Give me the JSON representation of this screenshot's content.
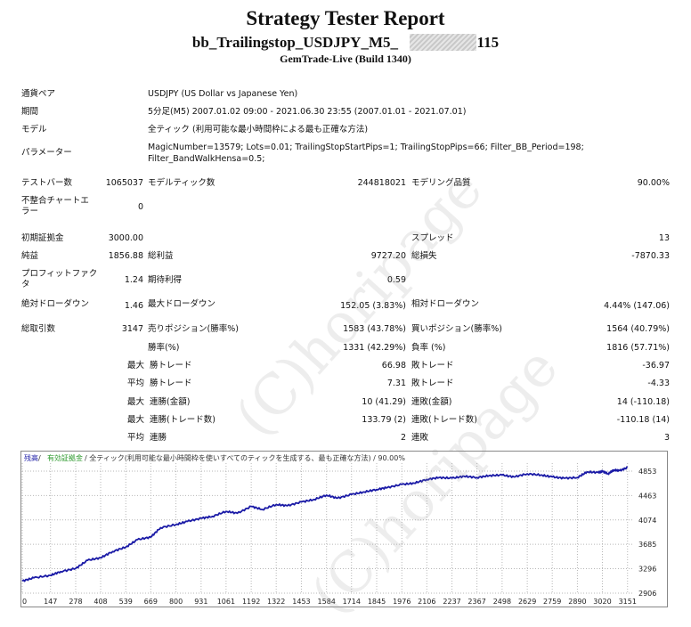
{
  "header": {
    "title": "Strategy Tester Report",
    "subtitle_left": "bb_Trailingstop_USDJPY_M5_",
    "subtitle_right": "2115",
    "server": "GemTrade-Live (Build 1340)"
  },
  "info": {
    "symbol_label": "通貨ペア",
    "symbol_value": "USDJPY (US Dollar vs Japanese Yen)",
    "period_label": "期間",
    "period_value": "5分足(M5) 2007.01.02 09:00 - 2021.06.30 23:55 (2007.01.01 - 2021.07.01)",
    "model_label": "モデル",
    "model_value": "全ティック (利用可能な最小時間枠による最も正確な方法)",
    "params_label": "パラメーター",
    "params_value_1": "MagicNumber=13579; Lots=0.01; TrailingStopStartPips=1; TrailingStopPips=66; Filter_BB_Period=198;",
    "params_value_2": "Filter_BandWalkHensa=0.5;"
  },
  "stats": {
    "bars_label": "テストバー数",
    "bars_value": "1065037",
    "ticks_label": "モデルティック数",
    "ticks_value": "244818021",
    "quality_label": "モデリング品質",
    "quality_value": "90.00%",
    "mismatch_label": "不整合チャートエラー",
    "mismatch_value": "0",
    "deposit_label": "初期証拠金",
    "deposit_value": "3000.00",
    "spread_label": "スプレッド",
    "spread_value": "13",
    "net_label": "純益",
    "net_value": "1856.88",
    "gross_profit_label": "総利益",
    "gross_profit_value": "9727.20",
    "gross_loss_label": "総損失",
    "gross_loss_value": "-7870.33",
    "pf_label": "プロフィットファクタ",
    "pf_value": "1.24",
    "expected_label": "期待利得",
    "expected_value": "0.59",
    "abs_dd_label": "絶対ドローダウン",
    "abs_dd_value": "1.46",
    "max_dd_label": "最大ドローダウン",
    "max_dd_value": "152.05 (3.83%)",
    "rel_dd_label": "相対ドローダウン",
    "rel_dd_value": "4.44% (147.06)",
    "trades_label": "総取引数",
    "trades_value": "3147",
    "short_label": "売りポジション(勝率%)",
    "short_value": "1583 (43.78%)",
    "long_label": "買いポジション(勝率%)",
    "long_value": "1564 (40.79%)",
    "win_label": "勝率(%)",
    "win_value": "1331 (42.29%)",
    "loss_label": "負率 (%)",
    "loss_value": "1816 (57.71%)",
    "max_word": "最大",
    "avg_word": "平均",
    "max_win_label": "勝トレード",
    "max_win_value": "66.98",
    "max_loss_label": "敗トレード",
    "max_loss_value": "-36.97",
    "avg_win_label": "勝トレード",
    "avg_win_value": "7.31",
    "avg_loss_label": "敗トレード",
    "avg_loss_value": "-4.33",
    "cons_win_money_label": "連勝(金額)",
    "cons_win_money_value": "10 (41.29)",
    "cons_loss_money_label": "連敗(金額)",
    "cons_loss_money_value": "14 (-110.18)",
    "cons_profit_label": "連勝(トレード数)",
    "cons_profit_value": "133.79 (2)",
    "cons_lossamt_label": "連敗(トレード数)",
    "cons_lossamt_value": "-110.18 (14)",
    "avg_cons_win_label": "連勝",
    "avg_cons_win_value": "2",
    "avg_cons_loss_label": "連敗",
    "avg_cons_loss_value": "3"
  },
  "watermark": "(C)horipage",
  "colors": {
    "balance_line": "#1a1aa6",
    "equity_legend": "#2e9a2e",
    "grid": "#b7b7b7"
  },
  "chart_data": {
    "type": "line",
    "legend": {
      "balance": "残高",
      "sep": " / ",
      "equity": "有効証拠金",
      "rest": " / 全ティック(利用可能な最小時間枠を使いすべてのティックを生成する、最も正確な方法) / 90.00%"
    },
    "x_ticks": [
      0,
      147,
      278,
      408,
      539,
      669,
      800,
      931,
      1061,
      1192,
      1322,
      1453,
      1584,
      1714,
      1845,
      1976,
      2106,
      2237,
      2367,
      2498,
      2629,
      2759,
      2890,
      3020,
      3151
    ],
    "y_ticks": [
      2906,
      3296,
      3685,
      4074,
      4463,
      4853
    ],
    "xlim": [
      0,
      3180
    ],
    "ylim": [
      2906,
      4980
    ],
    "series": [
      {
        "x": [
          0,
          60,
          147,
          200,
          278,
          340,
          408,
          470,
          539,
          600,
          669,
          720,
          800,
          860,
          931,
          990,
          1061,
          1120,
          1192,
          1250,
          1322,
          1380,
          1453,
          1520,
          1584,
          1640,
          1714,
          1780,
          1845,
          1900,
          1976,
          2040,
          2106,
          2170,
          2237,
          2300,
          2367,
          2430,
          2498,
          2560,
          2629,
          2700,
          2759,
          2820,
          2890,
          2940,
          3000,
          3020,
          3050,
          3080,
          3110,
          3151
        ],
        "y": [
          3100,
          3150,
          3190,
          3250,
          3300,
          3430,
          3470,
          3570,
          3640,
          3760,
          3800,
          3950,
          4000,
          4050,
          4100,
          4130,
          4210,
          4180,
          4290,
          4240,
          4320,
          4300,
          4360,
          4400,
          4470,
          4420,
          4480,
          4520,
          4560,
          4590,
          4640,
          4660,
          4720,
          4750,
          4740,
          4770,
          4750,
          4780,
          4790,
          4760,
          4810,
          4790,
          4760,
          4740,
          4750,
          4840,
          4830,
          4850,
          4810,
          4870,
          4860,
          4910
        ]
      }
    ]
  }
}
